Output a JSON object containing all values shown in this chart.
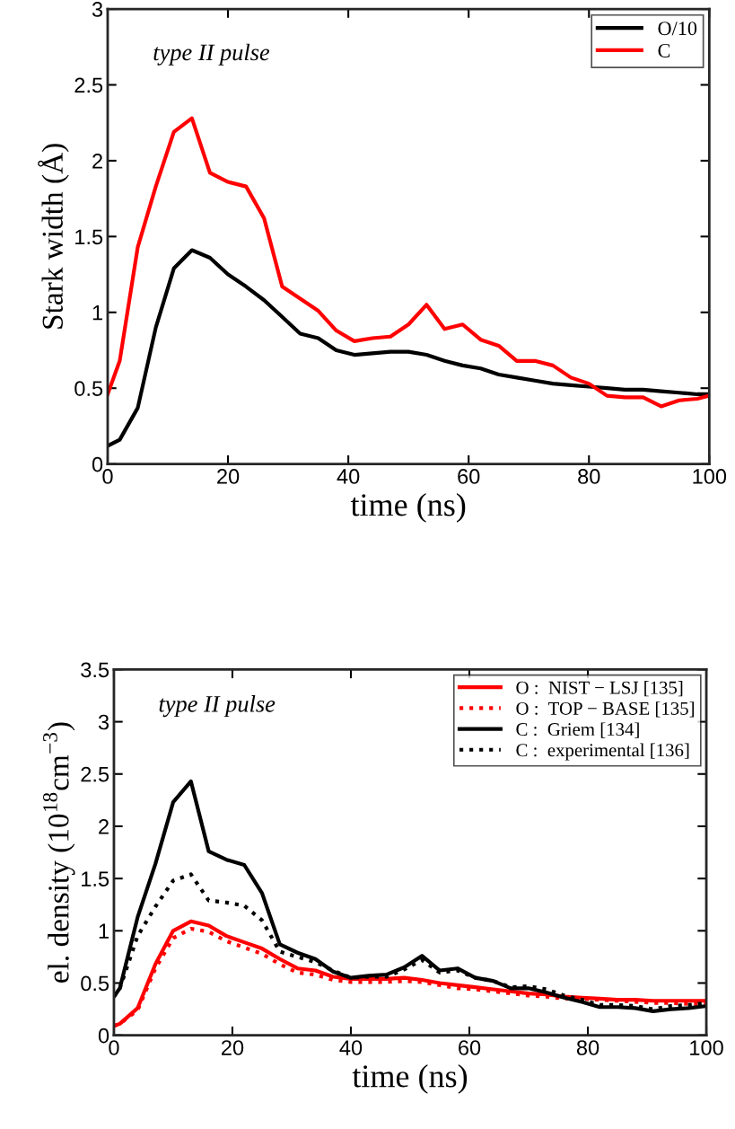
{
  "chart_data": [
    {
      "type": "line",
      "annotations": [
        "type II pulse"
      ],
      "xlabel": "time (ns)",
      "ylabel": "Stark width (Å)",
      "xlim": [
        0,
        100
      ],
      "xticks": [
        0,
        20,
        40,
        60,
        80,
        100
      ],
      "ylim": [
        0,
        3
      ],
      "yticks": [
        0,
        0.5,
        1,
        1.5,
        2,
        2.5,
        3
      ],
      "grid": false,
      "legend": "top right",
      "x": [
        0,
        2,
        5,
        8,
        11,
        14,
        17,
        20,
        23,
        26,
        29,
        32,
        35,
        38,
        41,
        44,
        47,
        50,
        53,
        56,
        59,
        62,
        65,
        68,
        71,
        74,
        77,
        80,
        83,
        86,
        89,
        92,
        95,
        98,
        100
      ],
      "series": [
        {
          "name": "O/10",
          "color": "#000000",
          "line_style": "solid",
          "values": [
            0.12,
            0.16,
            0.37,
            0.9,
            1.29,
            1.41,
            1.36,
            1.25,
            1.17,
            1.08,
            0.97,
            0.86,
            0.83,
            0.75,
            0.72,
            0.73,
            0.74,
            0.74,
            0.72,
            0.68,
            0.65,
            0.63,
            0.59,
            0.57,
            0.55,
            0.53,
            0.52,
            0.51,
            0.5,
            0.49,
            0.49,
            0.48,
            0.47,
            0.46,
            0.46
          ]
        },
        {
          "name": "C",
          "color": "#ff0000",
          "line_style": "solid",
          "values": [
            0.46,
            0.68,
            1.43,
            1.83,
            2.19,
            2.28,
            1.92,
            1.86,
            1.83,
            1.62,
            1.17,
            1.09,
            1.01,
            0.88,
            0.81,
            0.83,
            0.84,
            0.92,
            1.05,
            0.89,
            0.92,
            0.82,
            0.78,
            0.68,
            0.68,
            0.65,
            0.57,
            0.53,
            0.45,
            0.44,
            0.44,
            0.38,
            0.42,
            0.43,
            0.45
          ]
        }
      ]
    },
    {
      "type": "line",
      "annotations": [
        "type II pulse"
      ],
      "xlabel": "time (ns)",
      "ylabel": "el. density (10$^{18}$cm$^{−3}$)",
      "xlim": [
        0,
        100
      ],
      "xticks": [
        0,
        20,
        40,
        60,
        80,
        100
      ],
      "ylim": [
        0,
        3.5
      ],
      "yticks": [
        0,
        0.5,
        1,
        1.5,
        2,
        2.5,
        3,
        3.5
      ],
      "grid": false,
      "legend": "top right",
      "x": [
        0,
        1,
        4,
        7,
        10,
        13,
        16,
        19,
        22,
        25,
        28,
        31,
        34,
        37,
        40,
        43,
        46,
        49,
        52,
        55,
        58,
        61,
        64,
        67,
        70,
        73,
        76,
        79,
        82,
        85,
        88,
        91,
        94,
        97,
        100
      ],
      "series": [
        {
          "name": "O :  NIST − LSJ [135]",
          "color": "#ff0000",
          "line_style": "solid",
          "values": [
            0.09,
            0.11,
            0.26,
            0.68,
            1.0,
            1.09,
            1.05,
            0.95,
            0.89,
            0.83,
            0.73,
            0.64,
            0.62,
            0.56,
            0.54,
            0.54,
            0.54,
            0.55,
            0.53,
            0.5,
            0.48,
            0.46,
            0.44,
            0.42,
            0.4,
            0.39,
            0.37,
            0.36,
            0.35,
            0.34,
            0.34,
            0.33,
            0.33,
            0.33,
            0.33
          ]
        },
        {
          "name": "O :  TOP − BASE [135]",
          "color": "#ff0000",
          "line_style": "dotted",
          "values": [
            0.09,
            0.11,
            0.24,
            0.64,
            0.93,
            1.02,
            0.99,
            0.9,
            0.84,
            0.78,
            0.68,
            0.6,
            0.58,
            0.53,
            0.51,
            0.51,
            0.51,
            0.52,
            0.51,
            0.48,
            0.45,
            0.44,
            0.42,
            0.4,
            0.38,
            0.37,
            0.35,
            0.35,
            0.34,
            0.33,
            0.32,
            0.31,
            0.31,
            0.3,
            0.3
          ]
        },
        {
          "name": "C :  Griem [134]",
          "color": "#000000",
          "line_style": "solid",
          "values": [
            0.37,
            0.45,
            1.13,
            1.64,
            2.23,
            2.43,
            1.76,
            1.68,
            1.63,
            1.36,
            0.87,
            0.79,
            0.73,
            0.61,
            0.55,
            0.57,
            0.58,
            0.65,
            0.76,
            0.62,
            0.64,
            0.55,
            0.52,
            0.45,
            0.45,
            0.41,
            0.36,
            0.32,
            0.27,
            0.27,
            0.26,
            0.23,
            0.25,
            0.26,
            0.28
          ]
        },
        {
          "name": "C :  experimental [136]",
          "color": "#000000",
          "line_style": "dotted",
          "values": [
            0.37,
            0.45,
            0.95,
            1.23,
            1.48,
            1.54,
            1.29,
            1.27,
            1.24,
            1.1,
            0.8,
            0.75,
            0.7,
            0.62,
            0.55,
            0.56,
            0.56,
            0.63,
            0.72,
            0.6,
            0.62,
            0.55,
            0.52,
            0.46,
            0.47,
            0.44,
            0.38,
            0.34,
            0.29,
            0.29,
            0.28,
            0.25,
            0.28,
            0.29,
            0.31
          ]
        }
      ]
    }
  ]
}
